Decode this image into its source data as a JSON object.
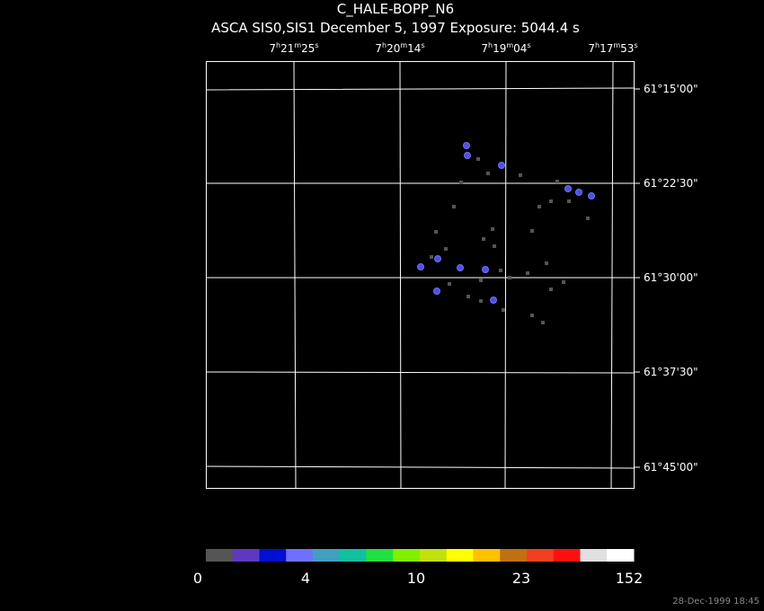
{
  "header": {
    "title": "C_HALE-BOPP_N6",
    "subtitle": "ASCA SIS0,SIS1 December 5, 1997 Exposure: 5044.4 s"
  },
  "ra_labels": [
    [
      "7",
      "h",
      "21",
      "m",
      "25",
      "s"
    ],
    [
      "7",
      "h",
      "20",
      "m",
      "14",
      "s"
    ],
    [
      "7",
      "h",
      "19",
      "m",
      "04",
      "s"
    ],
    [
      "7",
      "h",
      "17",
      "m",
      "53",
      "s"
    ]
  ],
  "dec_labels": [
    "61°15'00\"",
    "61°22'30\"",
    "61°30'00\"",
    "61°37'30\"",
    "61°45'00\""
  ],
  "colorbar": {
    "colors": [
      "#555555",
      "#6038c0",
      "#0010d0",
      "#7070ff",
      "#40a0c0",
      "#10c0a0",
      "#20e040",
      "#80f000",
      "#c0e010",
      "#ffff00",
      "#ffc000",
      "#c07010",
      "#f04020",
      "#ff1010",
      "#e0e0e0",
      "#ffffff"
    ],
    "labels": [
      "0",
      "4",
      "10",
      "23",
      "152"
    ]
  },
  "footer": "28-Dec-1999 18:45"
}
